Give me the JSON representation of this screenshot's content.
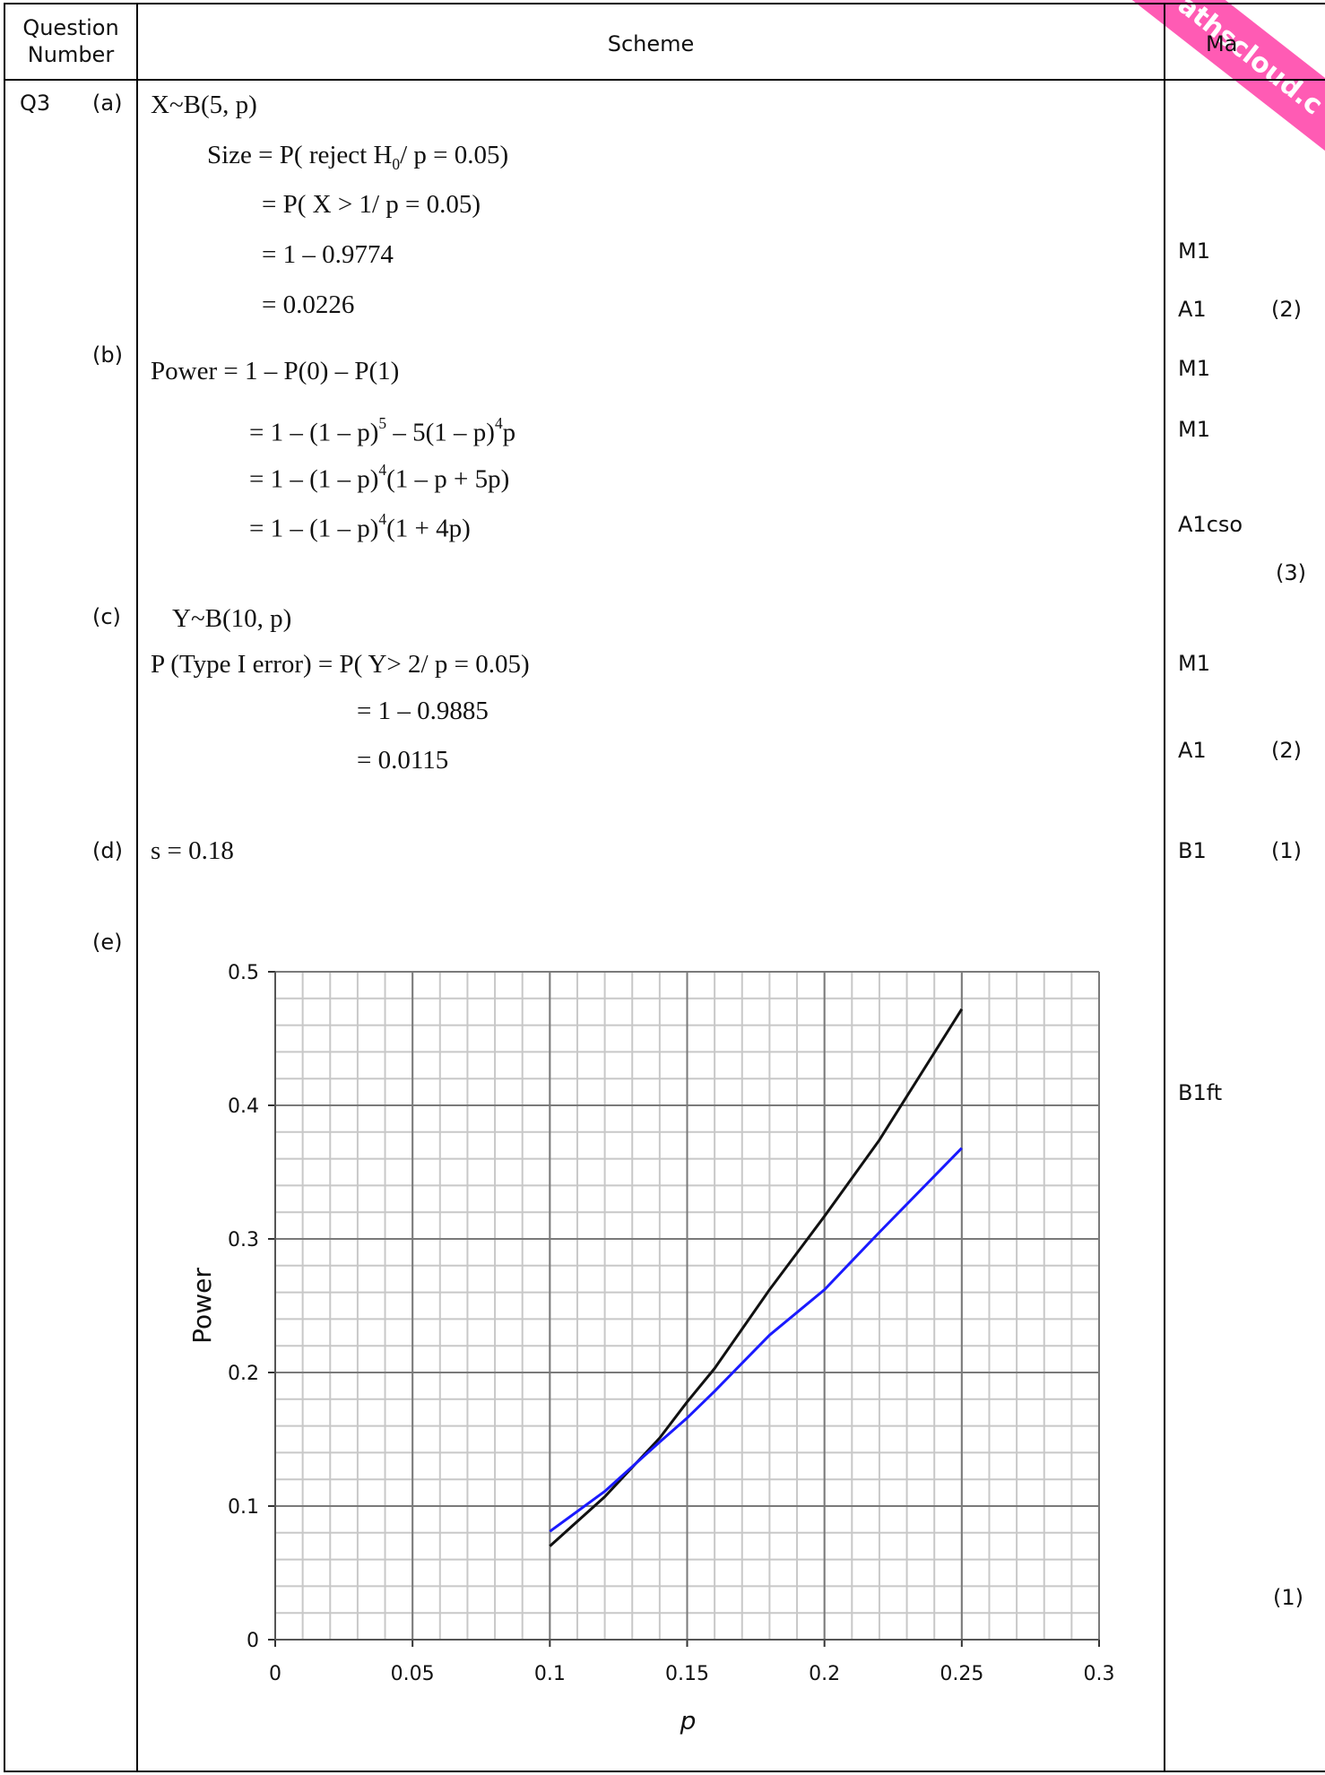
{
  "header": {
    "question_number": "Question\nNumber",
    "scheme": "Scheme",
    "marks": "Ma"
  },
  "watermark": "athscloud.c",
  "question": "Q3",
  "parts": {
    "a": {
      "label": "(a)",
      "lines": [
        "X~B(5, p)",
        "Size = P( reject H",
        "= P( X > 1/ p = 0.05)",
        "= 1 – 0.9774",
        "= 0.0226"
      ],
      "size_tail": "/ p = 0.05)",
      "h_sub": "0",
      "marks": [
        "M1",
        "A1"
      ],
      "total": "(2)"
    },
    "b": {
      "label": "(b)",
      "line1": "Power = 1 – P(0) – P(1)",
      "line2_a": "= 1 – (1 – p)",
      "line2_exp1": "5",
      "line2_b": " – 5(1 – p)",
      "line2_exp2": "4",
      "line2_c": "p",
      "line3_a": "= 1 – (1 – p)",
      "line3_exp": "4",
      "line3_b": "(1 – p + 5p)",
      "line4_a": "= 1 – (1 – p)",
      "line4_exp": "4",
      "line4_b": "(1 + 4p)",
      "marks": [
        "M1",
        "M1",
        "A1cso"
      ],
      "total": "(3)"
    },
    "c": {
      "label": "(c)",
      "lines": [
        "Y~B(10, p)",
        "P (Type I error) = P( Y> 2/ p = 0.05)",
        "= 1 – 0.9885",
        "= 0.0115"
      ],
      "marks": [
        "M1",
        "A1"
      ],
      "total": "(2)"
    },
    "d": {
      "label": "(d)",
      "line": "s = 0.18",
      "mark": "B1",
      "total": "(1)"
    },
    "e": {
      "label": "(e)",
      "mark": "B1ft",
      "total": "(1)"
    }
  },
  "chart_data": {
    "type": "line",
    "title": "",
    "xlabel": "p",
    "ylabel": "Power",
    "xlim": [
      0,
      0.3
    ],
    "ylim": [
      0,
      0.5
    ],
    "x_ticks": [
      "0",
      "0.05",
      "0.1",
      "0.15",
      "0.2",
      "0.25",
      "0.3"
    ],
    "y_ticks": [
      "0",
      "0.1",
      "0.2",
      "0.3",
      "0.4",
      "0.5"
    ],
    "grid": true,
    "series": [
      {
        "color": "#111111",
        "x": [
          0.1,
          0.12,
          0.14,
          0.15,
          0.16,
          0.18,
          0.2,
          0.22,
          0.25
        ],
        "values": [
          0.07,
          0.107,
          0.151,
          0.178,
          0.203,
          0.262,
          0.317,
          0.374,
          0.472
        ]
      },
      {
        "color": "#1a1aff",
        "x": [
          0.1,
          0.12,
          0.14,
          0.15,
          0.16,
          0.18,
          0.2,
          0.22,
          0.25
        ],
        "values": [
          0.081,
          0.111,
          0.148,
          0.166,
          0.186,
          0.228,
          0.262,
          0.305,
          0.368
        ]
      }
    ]
  }
}
